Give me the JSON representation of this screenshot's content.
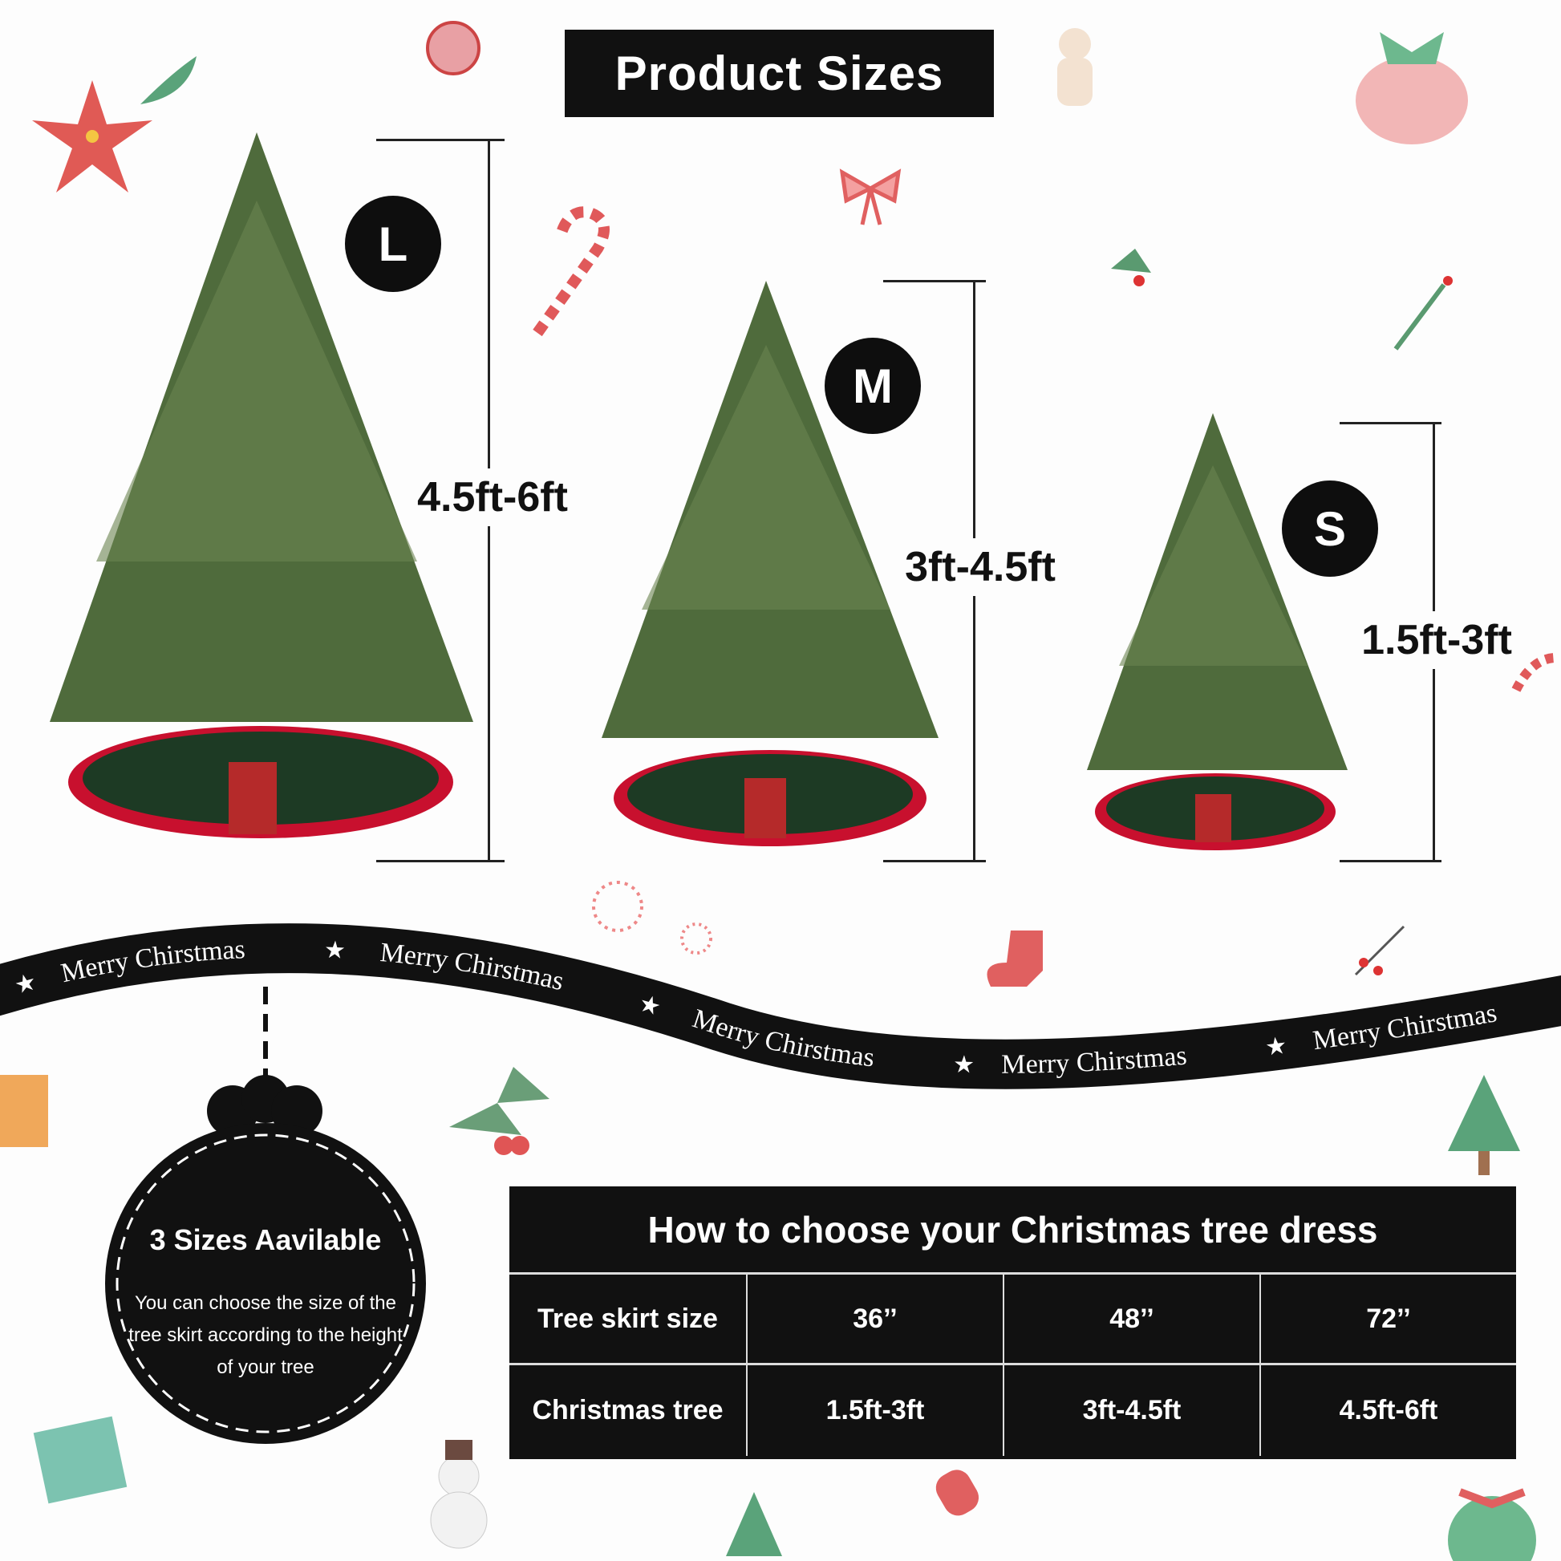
{
  "title": "Product Sizes",
  "sizes": [
    {
      "badge": "L",
      "height_label": "4.5ft-6ft"
    },
    {
      "badge": "M",
      "height_label": "3ft-4.5ft"
    },
    {
      "badge": "S",
      "height_label": "1.5ft-3ft"
    }
  ],
  "ribbon": {
    "text": "Merry Chirstmas",
    "star": "★"
  },
  "ornament": {
    "heading": "3 Sizes Aavilable",
    "body": "You can choose the size of the tree skirt according to the height of your tree"
  },
  "table": {
    "title": "How to choose your Christmas tree dress",
    "rows": [
      {
        "label": "Tree skirt size",
        "values": [
          "36’’",
          "48’’",
          "72’’"
        ]
      },
      {
        "label": "Christmas tree",
        "values": [
          "1.5ft-3ft",
          "3ft-4.5ft",
          "4.5ft-6ft"
        ]
      }
    ]
  },
  "colors": {
    "tree": "#4f6b3c",
    "skirt_green": "#1d3a24",
    "skirt_red": "#c8102e",
    "black": "#111111"
  }
}
